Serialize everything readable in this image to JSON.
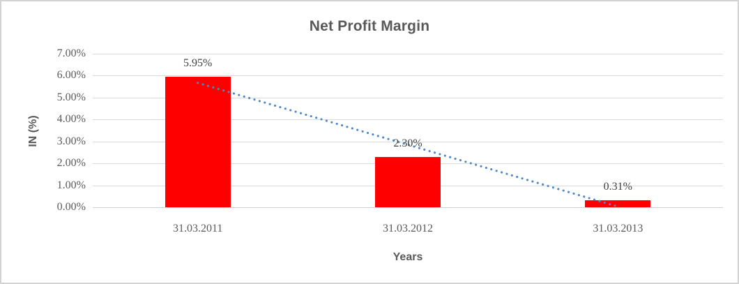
{
  "chart_data": {
    "type": "bar",
    "title": "Net Profit Margin",
    "xlabel": "Years",
    "ylabel": "IN (%)",
    "categories": [
      "31.03.2011",
      "31.03.2012",
      "31.03.2013"
    ],
    "values": [
      5.95,
      2.3,
      0.31
    ],
    "data_labels": [
      "5.95%",
      "2.30%",
      "0.31%"
    ],
    "ylim": [
      0,
      7
    ],
    "ytick_step": 1,
    "ytick_labels": [
      "0.00%",
      "1.00%",
      "2.00%",
      "3.00%",
      "4.00%",
      "5.00%",
      "6.00%",
      "7.00%"
    ],
    "grid": true,
    "legend_position": "none",
    "bar_color": "#ff0000",
    "text_color": "#595959",
    "gridline_color": "#d9d9d9",
    "trendline": {
      "type": "linear",
      "style": "dotted",
      "color": "#4e87c6",
      "fitted_values": [
        5.67,
        2.85,
        0.03
      ]
    }
  }
}
